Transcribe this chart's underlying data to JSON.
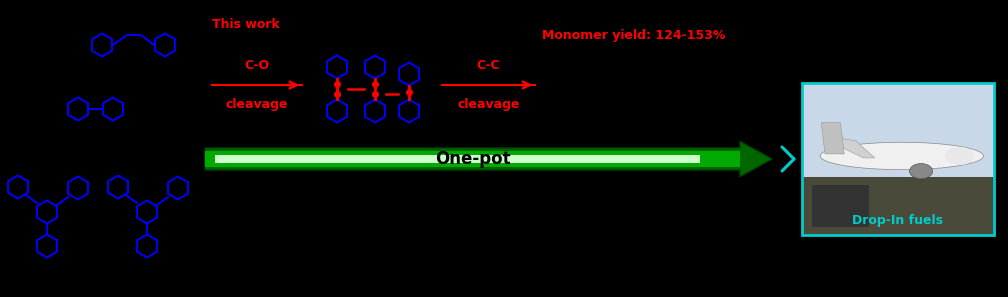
{
  "bg_color": "#000000",
  "blue": "#0000FF",
  "red": "#FF0000",
  "green_dark": "#006600",
  "green_mid": "#00AA00",
  "green_light": "#88FF88",
  "cyan": "#00CCCC",
  "white": "#FFFFFF",
  "title_text": "This work",
  "onepot": "One-pot",
  "monomer_yield": "Monomer yield: 124-153%",
  "drop_in": "Drop-In fuels",
  "fig_width": 10.08,
  "fig_height": 2.97
}
